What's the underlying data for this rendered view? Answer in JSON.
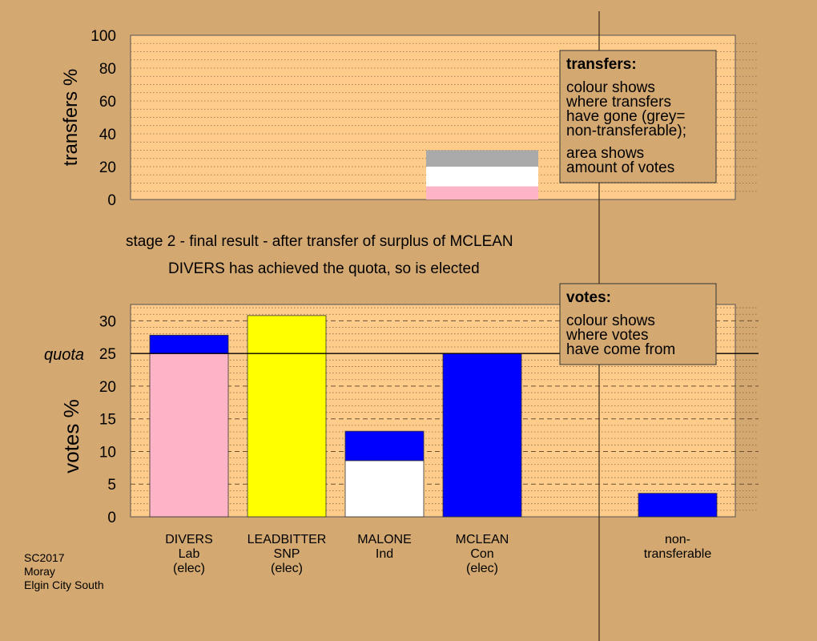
{
  "chart_data": [
    {
      "type": "bar",
      "ylabel": "transfers %",
      "ylim": [
        0,
        100
      ],
      "yticks": [
        0,
        20,
        40,
        60,
        80,
        100
      ],
      "categories": [
        "DIVERS",
        "LEADBITTER",
        "MALONE",
        "MCLEAN",
        "non-transferable"
      ],
      "stacks": [
        {
          "category": "MCLEAN",
          "segments": [
            {
              "from": "DIVERS",
              "value": 8,
              "color": "#FFB3C6"
            },
            {
              "from": "MALONE",
              "value": 12,
              "color": "#FFFFFF"
            },
            {
              "from": "non-transferable",
              "value": 10,
              "color": "#AAAAAA"
            }
          ]
        }
      ],
      "legend": {
        "title": "transfers:",
        "lines": [
          "colour shows",
          "where transfers",
          "have gone (grey=",
          "non-transferable);"
        ],
        "lines2": [
          "area shows",
          "amount of votes"
        ]
      }
    },
    {
      "type": "bar",
      "ylabel": "votes %",
      "ylim": [
        0,
        32.5
      ],
      "yticks": [
        0,
        5,
        10,
        15,
        20,
        25,
        30
      ],
      "quota": 25,
      "quota_label": "quota",
      "categories": [
        "DIVERS",
        "LEADBITTER",
        "MALONE",
        "MCLEAN",
        "non-transferable"
      ],
      "labels": [
        [
          "DIVERS",
          "Lab",
          "(elec)"
        ],
        [
          "LEADBITTER",
          "SNP",
          "(elec)"
        ],
        [
          "MALONE",
          "Ind"
        ],
        [
          "MCLEAN",
          "Con",
          "(elec)"
        ],
        [
          "non-",
          "transferable"
        ]
      ],
      "stacks": [
        {
          "category": "DIVERS",
          "segments": [
            {
              "value": 25,
              "color": "#FFB3C6"
            },
            {
              "value": 2.8,
              "color": "#0000FF"
            }
          ]
        },
        {
          "category": "LEADBITTER",
          "segments": [
            {
              "value": 30.8,
              "color": "#FFFF00"
            }
          ]
        },
        {
          "category": "MALONE",
          "segments": [
            {
              "value": 8.6,
              "color": "#FFFFFF"
            },
            {
              "value": 4.5,
              "color": "#0000FF"
            }
          ]
        },
        {
          "category": "MCLEAN",
          "segments": [
            {
              "value": 25,
              "color": "#0000FF"
            }
          ]
        },
        {
          "category": "non-transferable",
          "segments": [
            {
              "value": 3.6,
              "color": "#0000FF"
            }
          ]
        }
      ],
      "legend": {
        "title": "votes:",
        "lines": [
          "colour shows",
          "where votes",
          "have come from"
        ]
      }
    }
  ],
  "headline": "stage 2 - final result - after transfer of surplus of MCLEAN",
  "subheadline": "DIVERS has achieved the quota, so is elected",
  "footer": [
    "SC2017",
    "Moray",
    "Elgin City South"
  ],
  "colors": {
    "background": "#D4A871",
    "plot_background": "#FFCC8C",
    "grid": "#8a6a40"
  }
}
